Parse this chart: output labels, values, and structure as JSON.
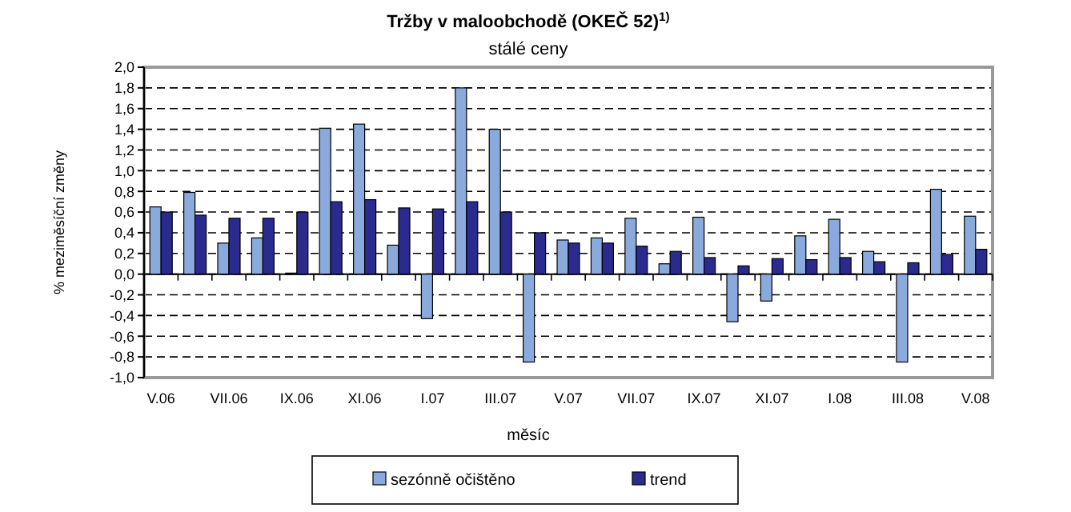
{
  "chart_data": {
    "type": "bar",
    "title": "Tržby v maloobchodě (OKEČ 52)$^{1)}$",
    "subtitle": "stálé ceny",
    "xlabel": "měsíc",
    "ylabel": "% meziměsíční změny",
    "categories": [
      "V.06",
      null,
      "VII.06",
      null,
      "IX.06",
      null,
      "XI.06",
      null,
      "I.07",
      null,
      "III.07",
      null,
      "V.07",
      null,
      "VII.07",
      null,
      "IX.07",
      null,
      "XI.07",
      null,
      "I.08",
      null,
      "III.08",
      null,
      "V.08"
    ],
    "series": [
      {
        "name": "sezónně očištěno",
        "color": "#8aa9dc",
        "values": [
          0.65,
          0.79,
          0.3,
          0.35,
          0.01,
          1.41,
          1.45,
          0.28,
          -0.43,
          1.8,
          1.4,
          -0.85,
          0.33,
          0.35,
          0.54,
          0.1,
          0.55,
          -0.46,
          -0.26,
          0.37,
          0.53,
          0.22,
          -0.85,
          0.82,
          0.56
        ]
      },
      {
        "name": "trend",
        "color": "#2b2b8f",
        "values": [
          0.6,
          0.57,
          0.54,
          0.54,
          0.6,
          0.7,
          0.72,
          0.64,
          0.63,
          0.7,
          0.6,
          0.4,
          0.3,
          0.3,
          0.27,
          0.22,
          0.16,
          0.08,
          0.15,
          0.14,
          0.16,
          0.12,
          0.11,
          0.19,
          0.24
        ]
      }
    ],
    "ylim": [
      -1,
      2
    ],
    "yticks": [
      {
        "value": -1,
        "label": "-1,0"
      },
      {
        "value": -0.8,
        "label": "-0,8"
      },
      {
        "value": -0.6,
        "label": "-0,6"
      },
      {
        "value": -0.4,
        "label": "-0,4"
      },
      {
        "value": -0.2,
        "label": "-0,2"
      },
      {
        "value": 0,
        "label": "0,0"
      },
      {
        "value": 0.2,
        "label": "0,2"
      },
      {
        "value": 0.4,
        "label": "0,4"
      },
      {
        "value": 0.6,
        "label": "0,6"
      },
      {
        "value": 0.8,
        "label": "0,8"
      },
      {
        "value": 1,
        "label": "1,0"
      },
      {
        "value": 1.2,
        "label": "1,2"
      },
      {
        "value": 1.4,
        "label": "1,4"
      },
      {
        "value": 1.6,
        "label": "1,6"
      },
      {
        "value": 1.8,
        "label": "1,8"
      },
      {
        "value": 2,
        "label": "2,0"
      }
    ],
    "grid": "y",
    "legend": "bottom"
  }
}
